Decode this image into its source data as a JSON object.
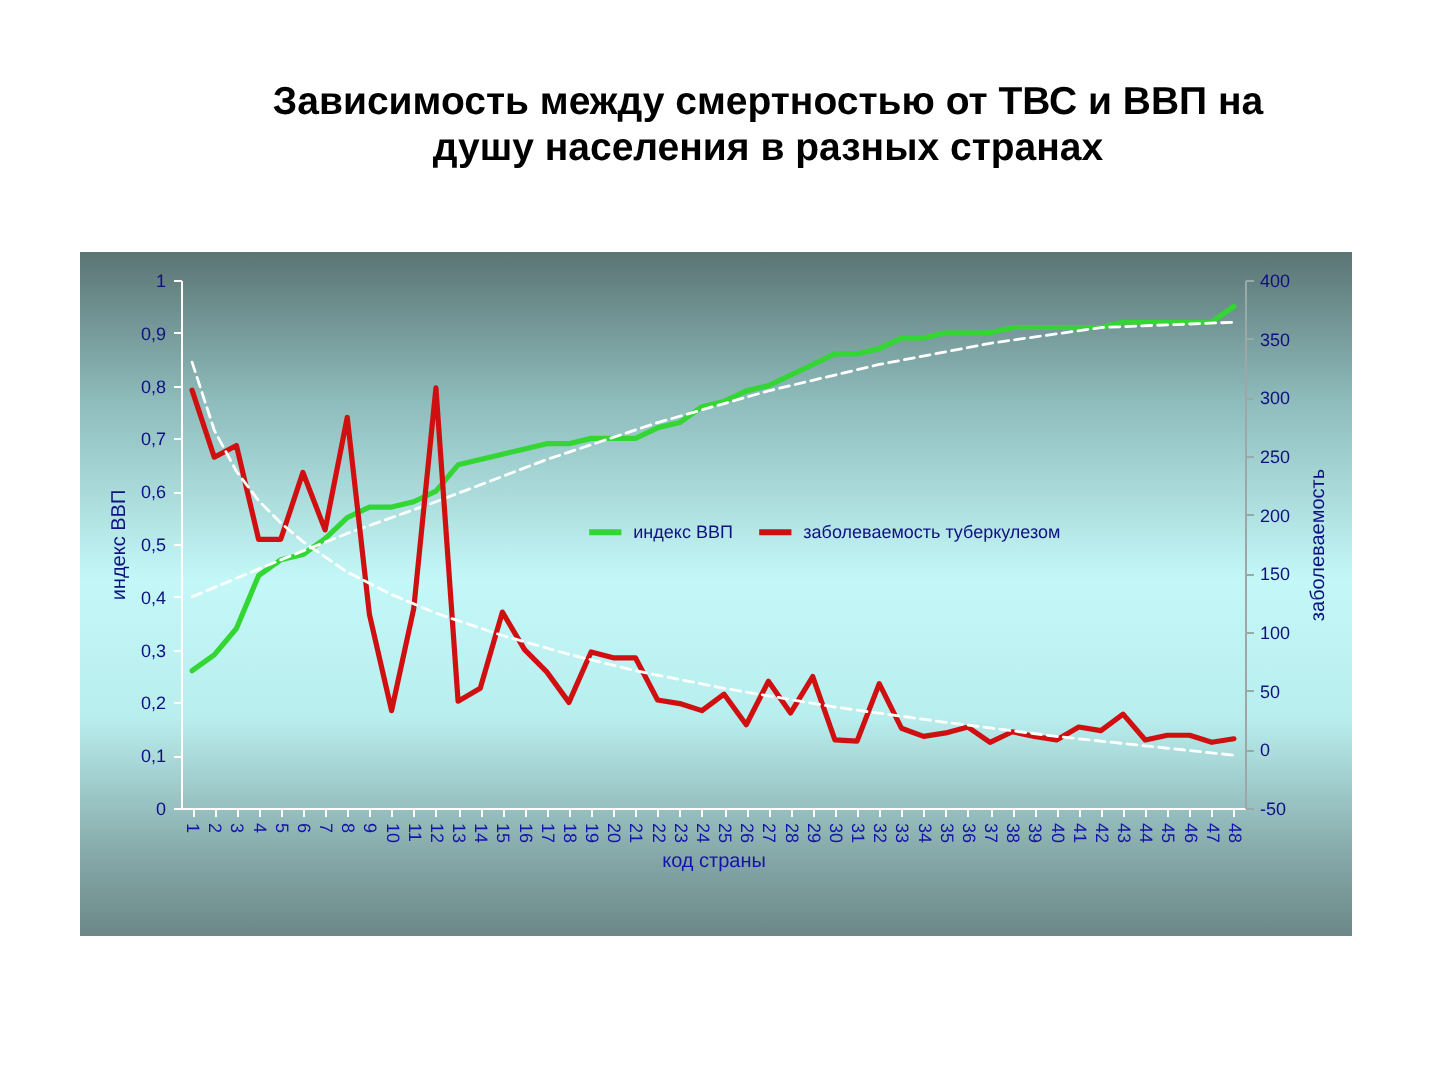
{
  "chart_data": {
    "type": "line",
    "title": "Зависимость между смертностью от ТВС и ВВП на душу населения в разных странах",
    "xlabel": "код страны",
    "ylabel": "индекс ВВП",
    "y2label": "заболеваемость",
    "x": [
      1,
      2,
      3,
      4,
      5,
      6,
      7,
      8,
      9,
      10,
      11,
      12,
      13,
      14,
      15,
      16,
      17,
      18,
      19,
      20,
      21,
      22,
      23,
      24,
      25,
      26,
      27,
      28,
      29,
      30,
      31,
      32,
      33,
      34,
      35,
      36,
      37,
      38,
      39,
      40,
      41,
      42,
      43,
      44,
      45,
      46,
      47,
      48
    ],
    "xlim": [
      0.5,
      48.5
    ],
    "xticks": [
      1,
      2,
      3,
      4,
      5,
      6,
      7,
      8,
      9,
      10,
      11,
      12,
      13,
      14,
      15,
      16,
      17,
      18,
      19,
      20,
      21,
      22,
      23,
      24,
      25,
      26,
      27,
      28,
      29,
      30,
      31,
      32,
      33,
      34,
      35,
      36,
      37,
      38,
      39,
      40,
      41,
      42,
      43,
      44,
      45,
      46,
      47,
      48
    ],
    "ylim": [
      0,
      1
    ],
    "yticks": [
      0,
      {
        "value": 0.1,
        "label": "0,1"
      },
      {
        "value": 0.2,
        "label": "0,2"
      },
      {
        "value": 0.3,
        "label": "0,3"
      },
      {
        "value": 0.4,
        "label": "0,4"
      },
      {
        "value": 0.5,
        "label": "0,5"
      },
      {
        "value": 0.6,
        "label": "0,6"
      },
      {
        "value": 0.7,
        "label": "0,7"
      },
      {
        "value": 0.8,
        "label": "0,8"
      },
      {
        "value": 0.9,
        "label": "0,9"
      },
      1
    ],
    "y2lim": [
      -50,
      400
    ],
    "y2ticks": [
      -50,
      0,
      50,
      100,
      150,
      200,
      250,
      300,
      350,
      400
    ],
    "legend": "right",
    "series": [
      {
        "name": "индекс ВВП",
        "color": "#33d633",
        "values": [
          0.26,
          0.29,
          0.34,
          0.44,
          0.47,
          0.48,
          0.51,
          0.55,
          0.57,
          0.57,
          0.58,
          0.6,
          0.65,
          0.66,
          0.67,
          0.68,
          0.69,
          0.69,
          0.7,
          0.7,
          0.7,
          0.72,
          0.73,
          0.76,
          0.77,
          0.79,
          0.8,
          0.82,
          0.84,
          0.86,
          0.86,
          0.87,
          0.89,
          0.89,
          0.9,
          0.9,
          0.9,
          0.91,
          0.91,
          0.91,
          0.91,
          0.91,
          0.92,
          0.92,
          0.92,
          0.92,
          0.92,
          0.95
        ]
      },
      {
        "name": "заболеваемость туберкулезом",
        "color": "#d01010",
        "axis": "y2",
        "values": [
          306,
          249,
          259,
          179,
          179,
          236,
          187,
          283,
          115,
          33,
          120,
          308,
          41,
          52,
          117,
          85,
          66,
          40,
          83,
          78,
          78,
          42,
          39,
          33,
          47,
          21,
          58,
          31,
          62,
          8,
          7,
          56,
          18,
          11,
          14,
          19,
          6,
          15,
          11,
          8,
          19,
          16,
          30,
          8,
          12,
          12,
          6,
          9
        ]
      },
      {
        "color": "#ffffff",
        "line_style": "dashed",
        "x": [
          1,
          5,
          8,
          12,
          17,
          22,
          27,
          32,
          37,
          42,
          48
        ],
        "values": [
          0.4,
          0.47,
          0.52,
          0.58,
          0.66,
          0.73,
          0.79,
          0.84,
          0.88,
          0.91,
          0.92
        ]
      },
      {
        "color": "#ffffff",
        "line_style": "dashed",
        "axis": "y2",
        "x": [
          1,
          2,
          3,
          4,
          5,
          6,
          8,
          10,
          12,
          15,
          18,
          21,
          25,
          30,
          35,
          40,
          44,
          48
        ],
        "values": [
          330,
          272,
          237,
          212,
          193,
          177,
          151,
          132,
          116,
          97,
          81,
          67,
          52,
          36,
          23,
          11,
          3,
          -5
        ]
      }
    ]
  }
}
